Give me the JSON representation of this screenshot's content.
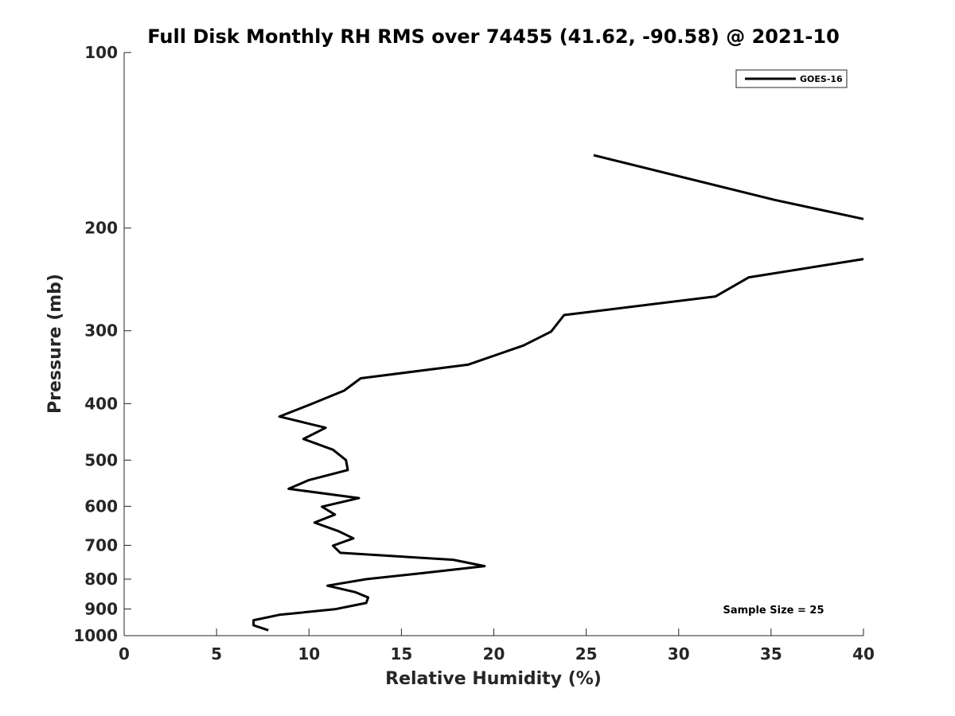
{
  "chart_data": {
    "type": "line",
    "title": "Full Disk Monthly RH RMS over 74455 (41.62, -90.58) @ 2021-10",
    "xlabel": "Relative Humidity (%)",
    "ylabel": "Pressure (mb)",
    "xlim": [
      0,
      40
    ],
    "ylim": [
      100,
      1000
    ],
    "yscale": "log",
    "y_reversed": true,
    "grid": false,
    "legend_position": "top-right",
    "x_ticks": [
      0,
      5,
      10,
      15,
      20,
      25,
      30,
      35,
      40
    ],
    "y_ticks": [
      100,
      200,
      300,
      400,
      500,
      600,
      700,
      800,
      900,
      1000
    ],
    "annotation": "Sample Size = 25",
    "series": [
      {
        "name": "GOES-16",
        "color": "#000000",
        "segments": [
          [
            {
              "x": 25.4,
              "y": 150
            },
            {
              "x": 35.2,
              "y": 179
            },
            {
              "x": 40.0,
              "y": 193
            }
          ],
          [
            {
              "x": 40.0,
              "y": 226
            },
            {
              "x": 33.8,
              "y": 243
            },
            {
              "x": 32.0,
              "y": 262
            },
            {
              "x": 23.8,
              "y": 282
            },
            {
              "x": 23.1,
              "y": 301
            },
            {
              "x": 21.6,
              "y": 318
            },
            {
              "x": 18.6,
              "y": 343
            },
            {
              "x": 12.8,
              "y": 362
            },
            {
              "x": 11.9,
              "y": 380
            },
            {
              "x": 10.1,
              "y": 401
            },
            {
              "x": 8.4,
              "y": 421
            },
            {
              "x": 10.9,
              "y": 440
            },
            {
              "x": 9.7,
              "y": 460
            },
            {
              "x": 11.3,
              "y": 480
            },
            {
              "x": 12.0,
              "y": 500
            },
            {
              "x": 12.1,
              "y": 520
            },
            {
              "x": 10.0,
              "y": 541
            },
            {
              "x": 8.9,
              "y": 560
            },
            {
              "x": 12.7,
              "y": 581
            },
            {
              "x": 10.7,
              "y": 601
            },
            {
              "x": 11.4,
              "y": 620
            },
            {
              "x": 10.3,
              "y": 640
            },
            {
              "x": 11.6,
              "y": 662
            },
            {
              "x": 12.4,
              "y": 681
            },
            {
              "x": 11.3,
              "y": 701
            },
            {
              "x": 11.7,
              "y": 721
            },
            {
              "x": 17.8,
              "y": 741
            },
            {
              "x": 19.5,
              "y": 760
            },
            {
              "x": 16.2,
              "y": 781
            },
            {
              "x": 13.1,
              "y": 800
            },
            {
              "x": 11.0,
              "y": 821
            },
            {
              "x": 12.5,
              "y": 842
            },
            {
              "x": 13.2,
              "y": 860
            },
            {
              "x": 13.1,
              "y": 879
            },
            {
              "x": 11.4,
              "y": 901
            },
            {
              "x": 8.4,
              "y": 921
            },
            {
              "x": 7.0,
              "y": 941
            },
            {
              "x": 7.0,
              "y": 960
            },
            {
              "x": 7.8,
              "y": 979
            }
          ]
        ]
      }
    ]
  }
}
